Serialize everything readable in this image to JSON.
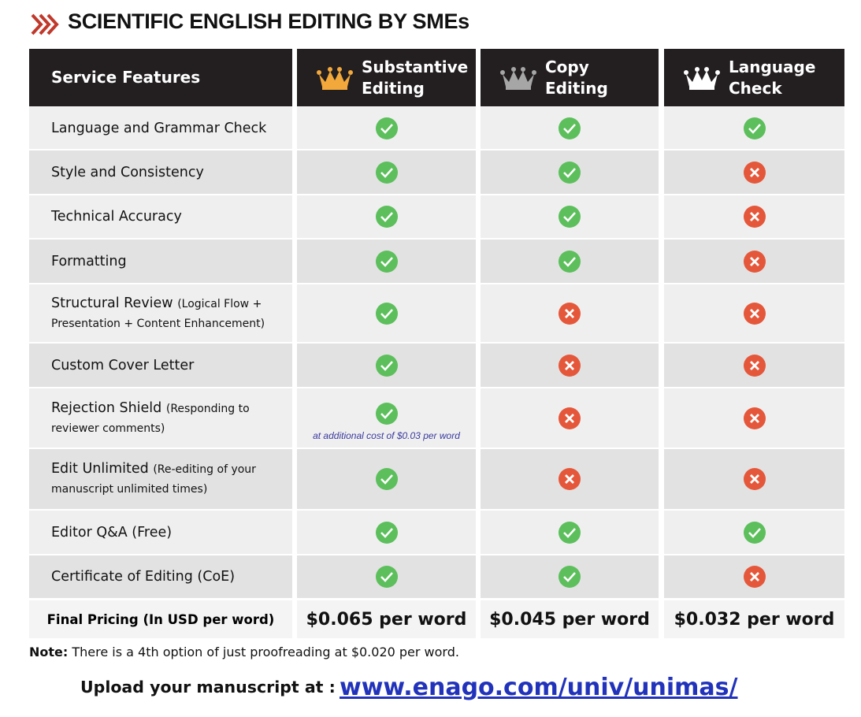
{
  "header": {
    "title": "SCIENTIFIC ENGLISH EDITING BY SMEs"
  },
  "table": {
    "columns": [
      "Service Features",
      "Substantive Editing",
      "Copy Editing",
      "Language Check"
    ],
    "rows": [
      {
        "feature": "Language and Grammar Check",
        "included": [
          true,
          true,
          true
        ]
      },
      {
        "feature": "Style and Consistency",
        "included": [
          true,
          true,
          false
        ]
      },
      {
        "feature": "Technical Accuracy",
        "included": [
          true,
          true,
          false
        ]
      },
      {
        "feature": "Formatting",
        "included": [
          true,
          true,
          false
        ]
      },
      {
        "feature": "Structural Review",
        "detail": "(Logical Flow + Presentation + Content Enhancement)",
        "included": [
          true,
          false,
          false
        ]
      },
      {
        "feature": "Custom Cover Letter",
        "included": [
          true,
          false,
          false
        ]
      },
      {
        "feature": "Rejection Shield",
        "detail": "(Responding to reviewer comments)",
        "included": [
          true,
          false,
          false
        ],
        "extra": "at additional cost of $0.03 per word"
      },
      {
        "feature": "Edit Unlimited",
        "detail": "(Re-editing of your manuscript unlimited times)",
        "included": [
          true,
          false,
          false
        ]
      },
      {
        "feature": "Editor Q&A (Free)",
        "included": [
          true,
          true,
          true
        ]
      },
      {
        "feature": "Certificate of Editing (CoE)",
        "included": [
          true,
          true,
          false
        ]
      }
    ],
    "pricing": {
      "label": "Final Pricing (In USD per word)",
      "prices": [
        "$0.065 per word",
        "$0.045 per word",
        "$0.032 per word"
      ]
    }
  },
  "note": {
    "label": "Note:",
    "text": "There is a 4th option of just proofreading at $0.020 per word."
  },
  "upload": {
    "label": "Upload your manuscript at :",
    "link": "www.enago.com/univ/unimas/"
  }
}
